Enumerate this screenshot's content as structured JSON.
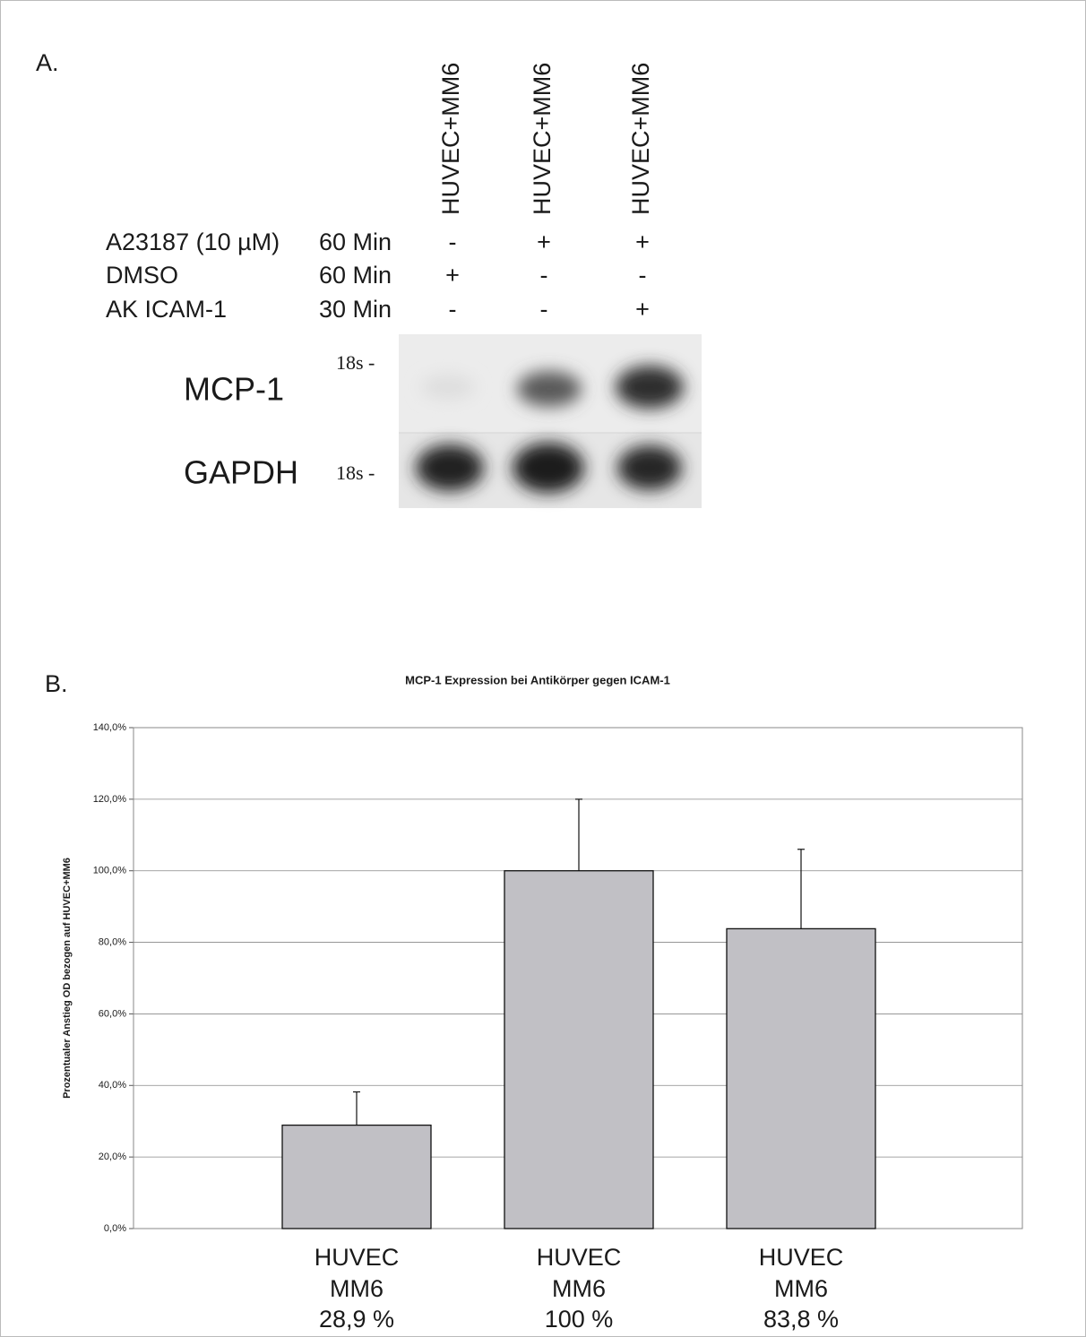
{
  "panel_a": {
    "label": "A.",
    "lanes": [
      "HUVEC+MM6",
      "HUVEC+MM6",
      "HUVEC+MM6"
    ],
    "rows": [
      {
        "treatment": "A23187 (10 µM)",
        "time": "60 Min",
        "signs": [
          "-",
          "+",
          "+"
        ]
      },
      {
        "treatment": "DMSO",
        "time": "60 Min",
        "signs": [
          "+",
          "-",
          "-"
        ]
      },
      {
        "treatment": "AK ICAM-1",
        "time": "30 Min",
        "signs": [
          "-",
          "-",
          "+"
        ]
      }
    ],
    "blots": [
      {
        "name": "MCP-1",
        "marker": "18s -"
      },
      {
        "name": "GAPDH",
        "marker": "18s -"
      }
    ]
  },
  "panel_b": {
    "label": "B."
  },
  "chart_data": {
    "type": "bar",
    "title": "MCP-1 Expression bei Antikörper gegen ICAM-1",
    "y_label": "Prozentualer Anstieg OD bezogen auf HUVEC+MM6",
    "categories": [
      [
        "HUVEC",
        "MM6"
      ],
      [
        "HUVEC",
        "MM6"
      ],
      [
        "HUVEC",
        "MM6"
      ]
    ],
    "values": [
      28.9,
      100,
      83.8
    ],
    "value_labels": [
      "28,9 %",
      "100 %",
      "83,8 %"
    ],
    "errors": [
      9.3,
      20,
      22.2
    ],
    "color": "#c1c0c5",
    "ylim": [
      0,
      140
    ],
    "yticks": [
      {
        "value": 0,
        "label": "0,0%"
      },
      {
        "value": 20,
        "label": "20,0%"
      },
      {
        "value": 40,
        "label": "40,0%"
      },
      {
        "value": 60,
        "label": "60,0%"
      },
      {
        "value": 80,
        "label": "80,0%"
      },
      {
        "value": 100,
        "label": "100,0%"
      },
      {
        "value": 120,
        "label": "120,0%"
      },
      {
        "value": 140,
        "label": "140,0%"
      }
    ],
    "grid": true
  }
}
